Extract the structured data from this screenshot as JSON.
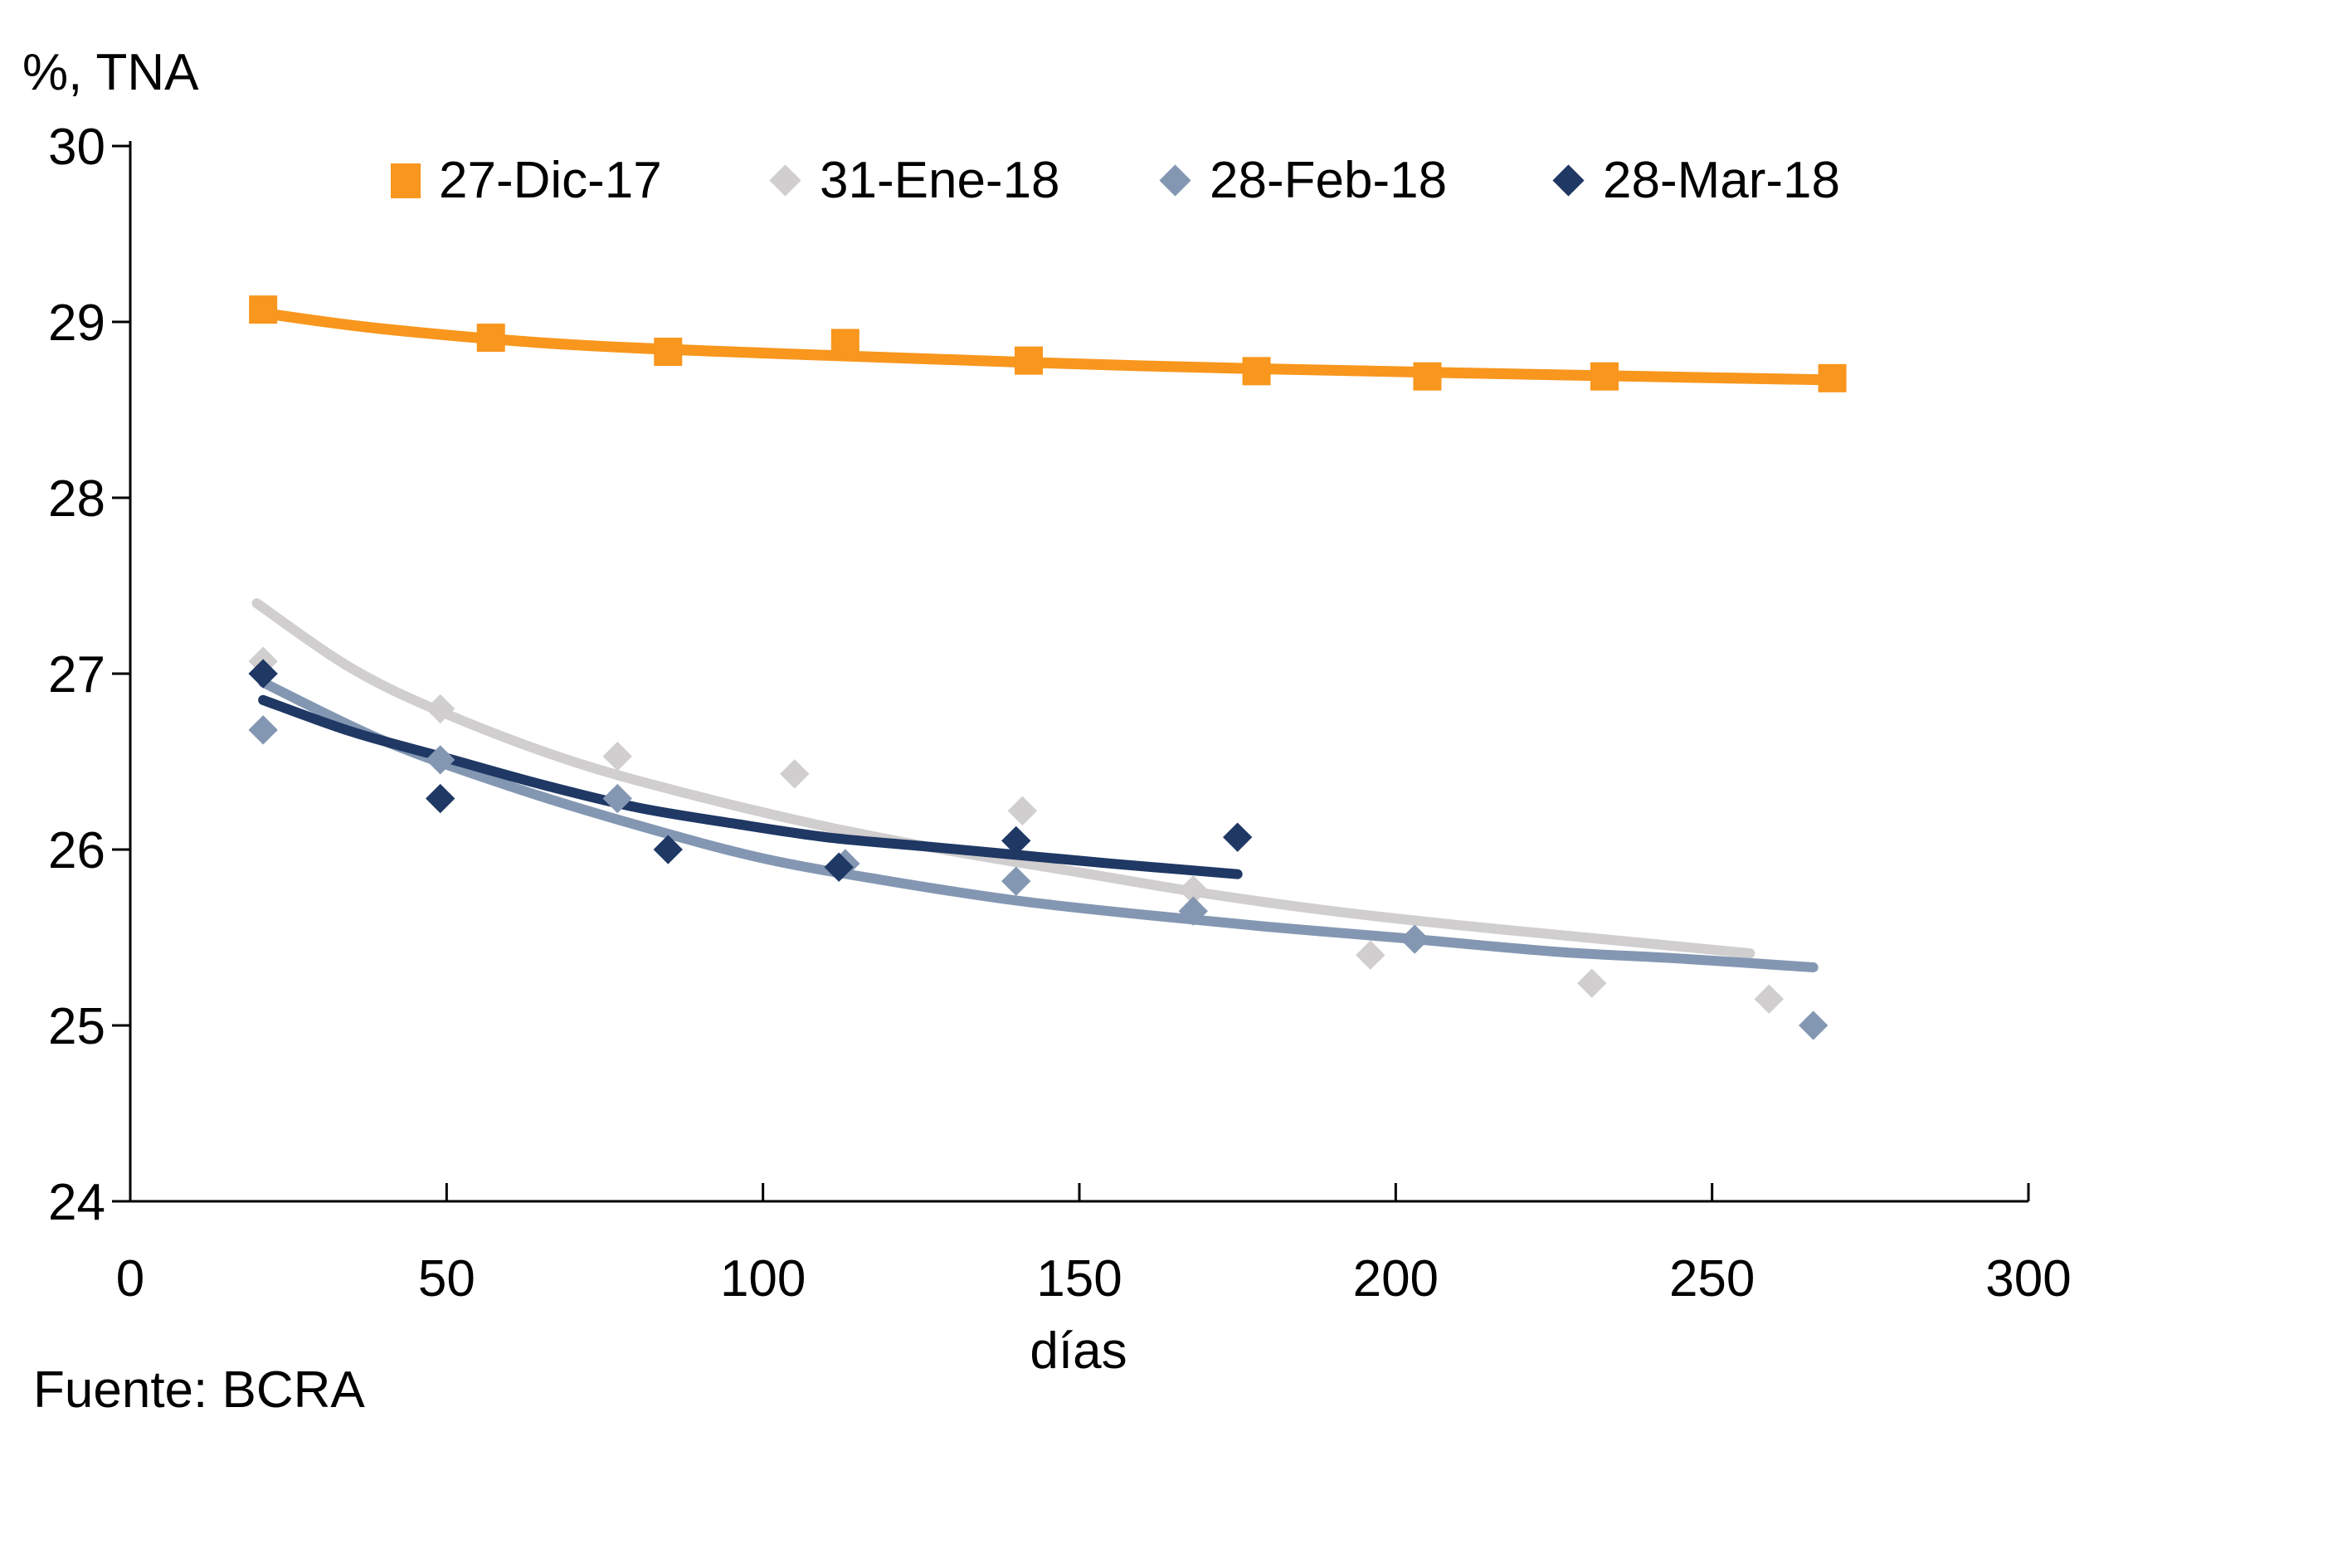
{
  "labels": {
    "y_axis_title": "%, TNA",
    "x_axis_title": "días",
    "source": "Fuente: BCRA"
  },
  "legend": {
    "position": "top",
    "items": [
      {
        "label": "27-Dic-17",
        "marker": "square",
        "color": "#F8961D"
      },
      {
        "label": "31-Ene-18",
        "marker": "diamond",
        "color": "#D0CECE"
      },
      {
        "label": "28-Feb-18",
        "marker": "diamond",
        "color": "#8497B2"
      },
      {
        "label": "28-Mar-18",
        "marker": "diamond",
        "color": "#1F3864"
      }
    ]
  },
  "chart_data": {
    "type": "scatter",
    "title": "",
    "xlabel": "días",
    "ylabel": "%, TNA",
    "xlim": [
      0,
      300
    ],
    "ylim": [
      24,
      30
    ],
    "x_ticks": [
      0,
      50,
      100,
      150,
      200,
      250,
      300
    ],
    "y_ticks": [
      24,
      25,
      26,
      27,
      28,
      29,
      30
    ],
    "grid": false,
    "legend_position": "top",
    "axis_color": "#000000",
    "background": "#FFFFFF",
    "series": [
      {
        "name": "27-Dic-17",
        "color": "#F8961D",
        "marker": "square",
        "points": [
          [
            21,
            29.07
          ],
          [
            57,
            28.91
          ],
          [
            85,
            28.83
          ],
          [
            113,
            28.88
          ],
          [
            142,
            28.78
          ],
          [
            178,
            28.72
          ],
          [
            205,
            28.69
          ],
          [
            233,
            28.69
          ],
          [
            269,
            28.68
          ]
        ],
        "trend": [
          [
            21,
            29.05
          ],
          [
            40,
            28.96
          ],
          [
            70,
            28.87
          ],
          [
            110,
            28.81
          ],
          [
            160,
            28.75
          ],
          [
            210,
            28.71
          ],
          [
            269,
            28.67
          ]
        ]
      },
      {
        "name": "31-Ene-18",
        "color": "#D0CECE",
        "marker": "diamond",
        "points": [
          [
            21,
            27.07
          ],
          [
            49,
            26.8
          ],
          [
            77,
            26.53
          ],
          [
            105,
            26.43
          ],
          [
            141,
            26.22
          ],
          [
            168,
            25.77
          ],
          [
            196,
            25.4
          ],
          [
            231,
            25.24
          ],
          [
            259,
            25.15
          ]
        ],
        "trend": [
          [
            20,
            27.4
          ],
          [
            35,
            27.03
          ],
          [
            50,
            26.77
          ],
          [
            70,
            26.5
          ],
          [
            90,
            26.3
          ],
          [
            110,
            26.13
          ],
          [
            130,
            25.99
          ],
          [
            150,
            25.87
          ],
          [
            170,
            25.75
          ],
          [
            190,
            25.65
          ],
          [
            210,
            25.57
          ],
          [
            230,
            25.5
          ],
          [
            256,
            25.41
          ]
        ]
      },
      {
        "name": "28-Feb-18",
        "color": "#8497B2",
        "marker": "diamond",
        "points": [
          [
            21,
            26.68
          ],
          [
            49,
            26.51
          ],
          [
            77,
            26.29
          ],
          [
            113,
            25.92
          ],
          [
            140,
            25.82
          ],
          [
            168,
            25.65
          ],
          [
            203,
            25.49
          ],
          [
            266,
            25.0
          ]
        ],
        "trend": [
          [
            21,
            26.95
          ],
          [
            40,
            26.62
          ],
          [
            60,
            26.36
          ],
          [
            80,
            26.14
          ],
          [
            100,
            25.95
          ],
          [
            120,
            25.82
          ],
          [
            140,
            25.71
          ],
          [
            160,
            25.63
          ],
          [
            180,
            25.56
          ],
          [
            200,
            25.5
          ],
          [
            225,
            25.42
          ],
          [
            245,
            25.38
          ],
          [
            266,
            25.33
          ]
        ]
      },
      {
        "name": "28-Mar-18",
        "color": "#1F3864",
        "marker": "diamond",
        "points": [
          [
            21,
            27.0
          ],
          [
            49,
            26.29
          ],
          [
            85,
            26.0
          ],
          [
            112,
            25.9
          ],
          [
            140,
            26.05
          ],
          [
            175,
            26.07
          ]
        ],
        "trend": [
          [
            21,
            26.85
          ],
          [
            35,
            26.67
          ],
          [
            50,
            26.52
          ],
          [
            65,
            26.37
          ],
          [
            80,
            26.24
          ],
          [
            95,
            26.15
          ],
          [
            110,
            26.07
          ],
          [
            125,
            26.02
          ],
          [
            140,
            25.97
          ],
          [
            155,
            25.92
          ],
          [
            165,
            25.89
          ],
          [
            175,
            25.86
          ]
        ]
      }
    ]
  }
}
